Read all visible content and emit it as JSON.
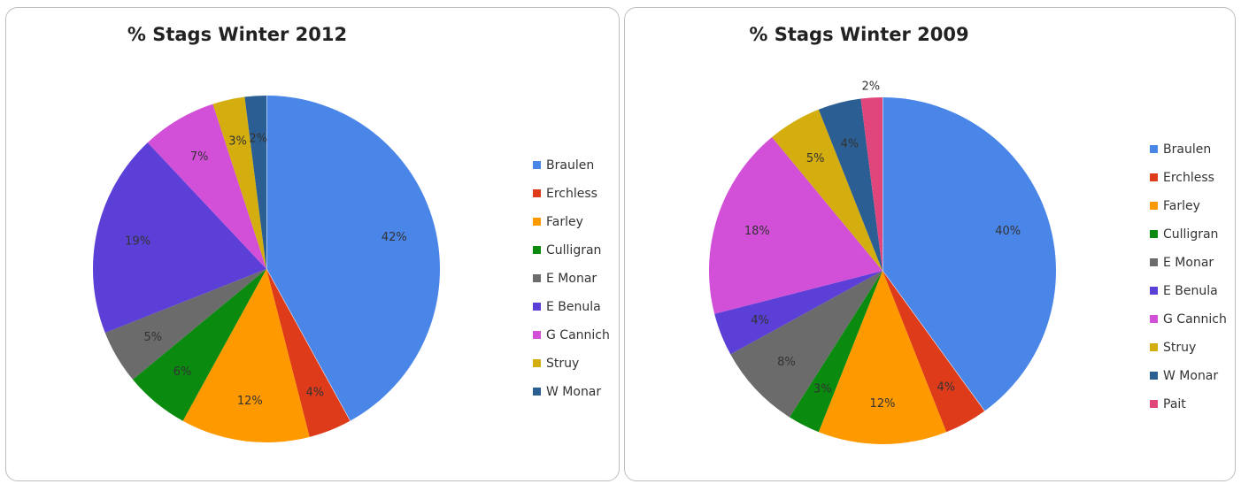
{
  "chart_data": [
    {
      "type": "pie",
      "title": "% Stags Winter 2012",
      "legend": "right",
      "slices": [
        {
          "name": "Braulen",
          "value": 42,
          "label": "42%",
          "color": "#4a86e8"
        },
        {
          "name": "Erchless",
          "value": 4,
          "label": "4%",
          "color": "#dd3b1a"
        },
        {
          "name": "Farley",
          "value": 12,
          "label": "12%",
          "color": "#ff9900"
        },
        {
          "name": "Culligran",
          "value": 6,
          "label": "6%",
          "color": "#0b8a10"
        },
        {
          "name": "E Monar",
          "value": 5,
          "label": "5%",
          "color": "#6b6b6b"
        },
        {
          "name": "E Benula",
          "value": 19,
          "label": "19%",
          "color": "#5b3fd6"
        },
        {
          "name": "G Cannich",
          "value": 7,
          "label": "7%",
          "color": "#d24fd8"
        },
        {
          "name": "Struy",
          "value": 3,
          "label": "3%",
          "color": "#d4ad0e"
        },
        {
          "name": "W Monar",
          "value": 2,
          "label": "2%",
          "color": "#2b5f94"
        }
      ]
    },
    {
      "type": "pie",
      "title": "% Stags Winter 2009",
      "legend": "right",
      "slices": [
        {
          "name": "Braulen",
          "value": 40,
          "label": "40%",
          "color": "#4a86e8"
        },
        {
          "name": "Erchless",
          "value": 4,
          "label": "4%",
          "color": "#dd3b1a"
        },
        {
          "name": "Farley",
          "value": 12,
          "label": "12%",
          "color": "#ff9900"
        },
        {
          "name": "Culligran",
          "value": 3,
          "label": "3%",
          "color": "#0b8a10"
        },
        {
          "name": "E Monar",
          "value": 8,
          "label": "8%",
          "color": "#6b6b6b"
        },
        {
          "name": "E Benula",
          "value": 4,
          "label": "4%",
          "color": "#5b3fd6"
        },
        {
          "name": "G Cannich",
          "value": 18,
          "label": "18%",
          "color": "#d24fd8"
        },
        {
          "name": "Struy",
          "value": 5,
          "label": "5%",
          "color": "#d4ad0e"
        },
        {
          "name": "W Monar",
          "value": 4,
          "label": "4%",
          "color": "#2b5f94"
        },
        {
          "name": "Pait",
          "value": 2,
          "label": "2%",
          "color": "#e0457b"
        }
      ]
    }
  ]
}
